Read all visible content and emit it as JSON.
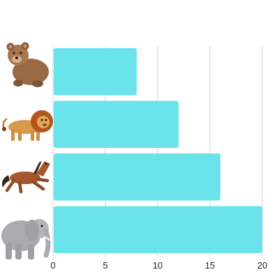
{
  "chart_data": {
    "type": "bar",
    "orientation": "horizontal",
    "categories": [
      "bear-icon",
      "lion-icon",
      "horse-icon",
      "elephant-icon"
    ],
    "values": [
      8,
      12,
      16,
      20
    ],
    "xlim": [
      0,
      20
    ],
    "xticks": [
      "0",
      "5",
      "10",
      "15",
      "20"
    ],
    "grid": true,
    "bar_color": "#6be3ea",
    "grid_color": "#cfcfcf",
    "title": "",
    "xlabel": "",
    "ylabel": ""
  }
}
